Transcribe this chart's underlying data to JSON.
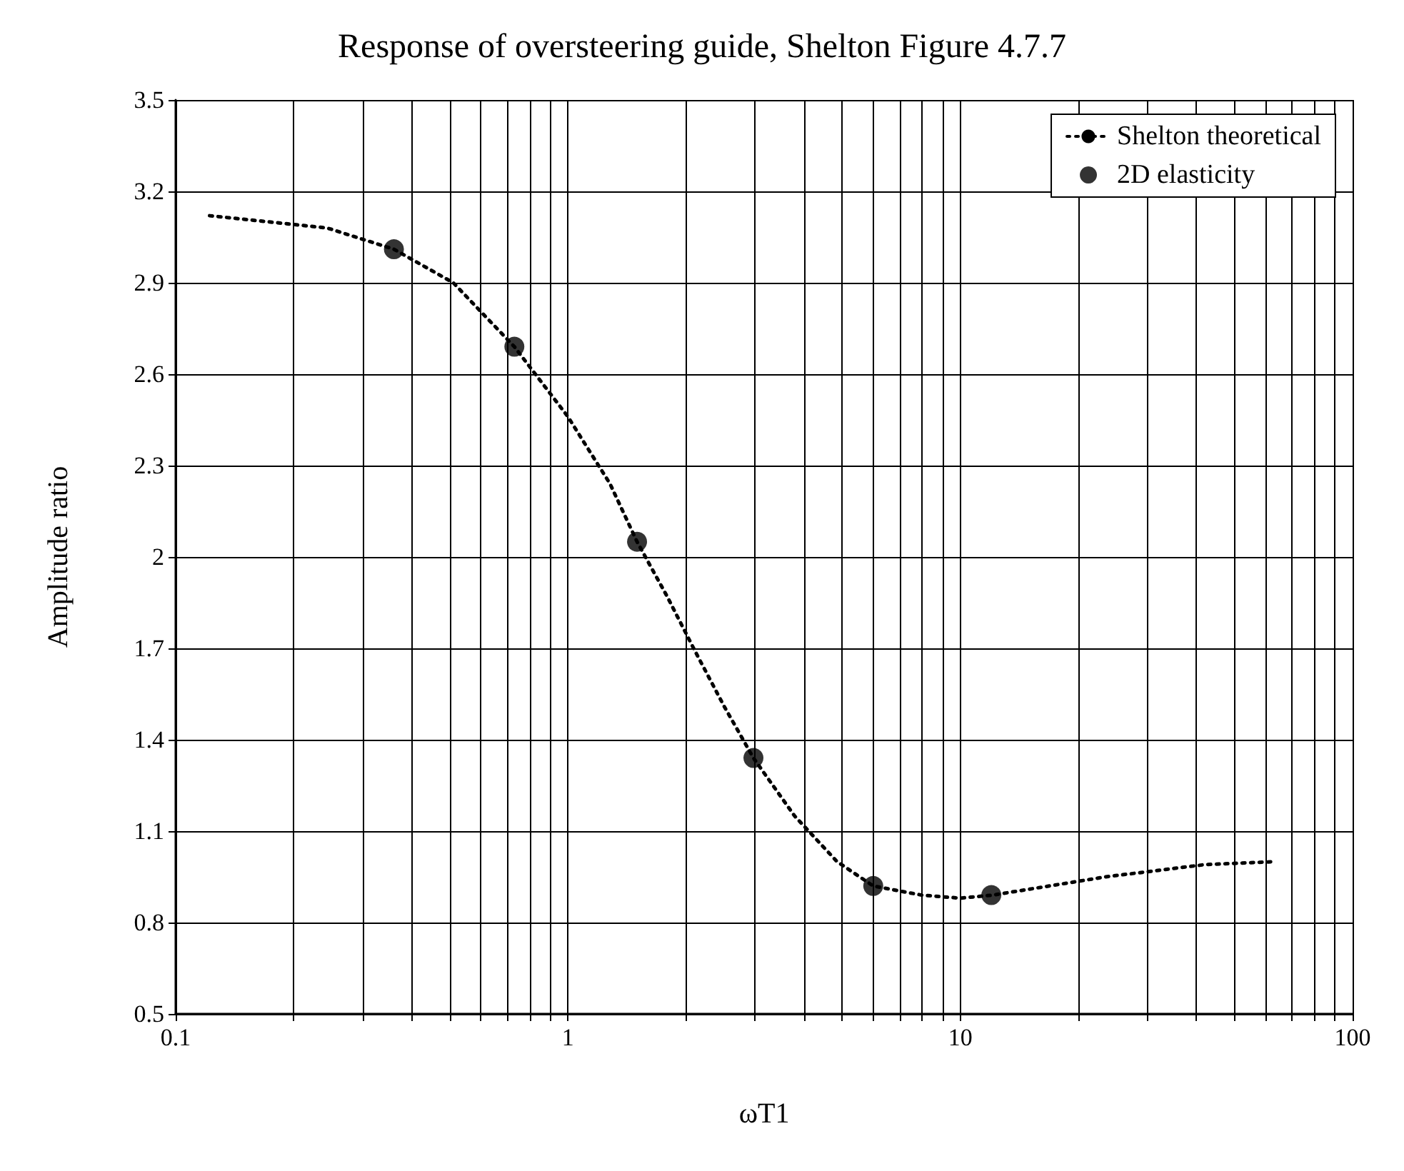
{
  "chart_data": {
    "type": "line",
    "title": "Response of oversteering guide, Shelton Figure 4.7.7",
    "xlabel": "ωT1",
    "ylabel": "Amplitude ratio",
    "series": [
      {
        "name": "Shelton theoretical",
        "color": "#000000",
        "line_style": "dotted",
        "marker": "none",
        "x": [
          0.122,
          0.243,
          0.36,
          0.51,
          0.73,
          1.0,
          1.28,
          1.5,
          1.79,
          2.11,
          2.5,
          2.97,
          3.78,
          4.85,
          6.0,
          7.97,
          10,
          12.1,
          23.5,
          42,
          63.7
        ],
        "values": [
          3.12,
          3.08,
          3.01,
          2.9,
          2.69,
          2.46,
          2.24,
          2.05,
          1.87,
          1.69,
          1.51,
          1.34,
          1.15,
          1.0,
          0.92,
          0.89,
          0.88,
          0.89,
          0.95,
          0.99,
          1.0
        ]
      },
      {
        "name": "2D elasticity",
        "type": "scatter",
        "color": "#000000",
        "marker": "circle",
        "x": [
          0.36,
          0.73,
          1.5,
          2.97,
          6.0,
          12.0
        ],
        "values": [
          3.01,
          2.69,
          2.05,
          1.34,
          0.92,
          0.89
        ]
      }
    ],
    "xlim": [
      0.1,
      100
    ],
    "xticks": [
      0.1,
      1,
      10,
      100
    ],
    "ylim": [
      0.5,
      3.5
    ],
    "yticks": [
      0.5,
      0.8,
      1.1,
      1.4,
      1.7,
      2,
      2.3,
      2.6,
      2.9,
      3.2,
      3.5
    ],
    "log": "x",
    "grid": true,
    "legend": "top right"
  }
}
